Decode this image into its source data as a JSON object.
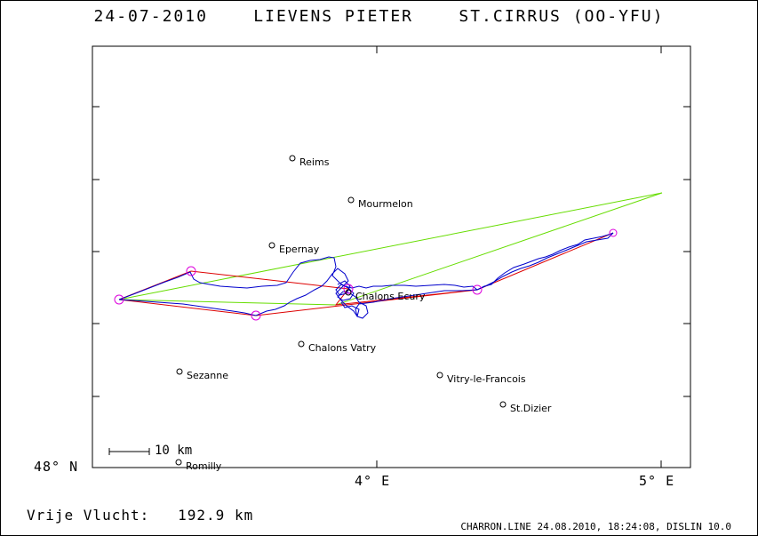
{
  "title": {
    "date": "24-07-2010",
    "pilot": "LIEVENS PIETER",
    "glider": "ST.CIRRUS (OO-YFU)"
  },
  "axes": {
    "y_label": "48° N",
    "x_labels": [
      "4° E",
      "5° E"
    ]
  },
  "scale_bar": {
    "label": "10 km"
  },
  "footer": {
    "distance_label": "Vrije Vlucht:",
    "distance_value": "192.9 km",
    "program": "CHARRON.LINE 24.08.2010, 18:24:08, DISLIN 10.0"
  },
  "colors": {
    "track": "#0000cc",
    "task": "#dd0000",
    "triangle": "#66dd00",
    "turnpoint": "#dd00dd"
  },
  "cities": [
    {
      "name": "Reims"
    },
    {
      "name": "Mourmelon"
    },
    {
      "name": "Epernay"
    },
    {
      "name": "Chalons Ecury"
    },
    {
      "name": "Chalons Vatry"
    },
    {
      "name": "Sezanne"
    },
    {
      "name": "Vitry-le-Francois"
    },
    {
      "name": "St.Dizier"
    },
    {
      "name": "Romilly"
    }
  ]
}
